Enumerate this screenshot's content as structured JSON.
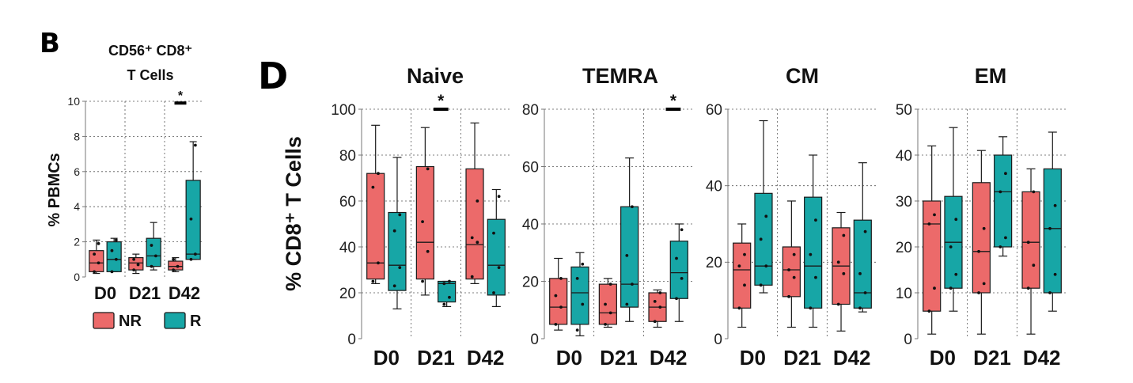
{
  "figure": {
    "panel_b_label": "B",
    "panel_d_label": "D",
    "panel_b_ylabel": "% PBMCs",
    "panel_d_ylabel": "% CD8⁺ T Cells",
    "legend": [
      {
        "label": "NR",
        "color": "#ec6a6a"
      },
      {
        "label": "R",
        "color": "#17a6a6"
      }
    ],
    "significance_marker": "*"
  },
  "colors": {
    "NR": "#ec6a6a",
    "R": "#17a6a6",
    "outline": "#1a1a1a",
    "grid": "#555555"
  },
  "chart_data": [
    {
      "id": "cd56",
      "type": "box",
      "title_lines": [
        "CD56⁺ CD8⁺",
        "T Cells"
      ],
      "ylabel": "% PBMCs",
      "categories": [
        "D0",
        "D21",
        "D42"
      ],
      "ylim": [
        0,
        10
      ],
      "yticks": [
        0,
        2,
        4,
        6,
        8,
        10
      ],
      "series": [
        {
          "name": "NR",
          "boxes": [
            {
              "min": 0.2,
              "q1": 0.3,
              "median": 0.8,
              "q3": 1.5,
              "max": 2.1,
              "points": [
                0.3,
                0.8,
                1.3,
                1.9
              ]
            },
            {
              "min": 0.2,
              "q1": 0.4,
              "median": 0.8,
              "q3": 1.1,
              "max": 1.3,
              "points": [
                0.4,
                0.7,
                1.0
              ]
            },
            {
              "min": 0.3,
              "q1": 0.4,
              "median": 0.6,
              "q3": 0.9,
              "max": 1.1,
              "points": [
                0.4,
                0.6,
                1.0
              ]
            }
          ]
        },
        {
          "name": "R",
          "boxes": [
            {
              "min": 0.3,
              "q1": 0.3,
              "median": 1.0,
              "q3": 2.0,
              "max": 2.2,
              "points": [
                0.3,
                1.0,
                1.5,
                2.1
              ]
            },
            {
              "min": 0.4,
              "q1": 0.6,
              "median": 1.2,
              "q3": 2.2,
              "max": 3.1,
              "points": [
                0.6,
                1.2,
                1.8
              ]
            },
            {
              "min": 1.0,
              "q1": 1.0,
              "median": 1.3,
              "q3": 5.5,
              "max": 7.7,
              "points": [
                1.0,
                1.3,
                3.3,
                7.5
              ]
            }
          ]
        }
      ],
      "significance": [
        {
          "x_from": 2.75,
          "x_to": 3.05,
          "y": 9.9,
          "label": "*"
        }
      ]
    },
    {
      "id": "naive",
      "type": "box",
      "title": "Naive",
      "ylabel": "% CD8⁺ T Cells",
      "categories": [
        "D0",
        "D21",
        "D42"
      ],
      "ylim": [
        0,
        100
      ],
      "yticks": [
        0,
        20,
        40,
        60,
        80,
        100
      ],
      "series": [
        {
          "name": "NR",
          "boxes": [
            {
              "min": 24,
              "q1": 26,
              "median": 33,
              "q3": 72,
              "max": 93,
              "points": [
                25,
                33,
                66,
                72
              ]
            },
            {
              "min": 19,
              "q1": 26,
              "median": 42,
              "q3": 75,
              "max": 92,
              "points": [
                25,
                38,
                51,
                74
              ]
            },
            {
              "min": 24,
              "q1": 26,
              "median": 41,
              "q3": 74,
              "max": 94,
              "points": [
                27,
                42,
                44,
                60
              ]
            }
          ]
        },
        {
          "name": "R",
          "boxes": [
            {
              "min": 13,
              "q1": 21,
              "median": 32,
              "q3": 55,
              "max": 79,
              "points": [
                23,
                31,
                47,
                54
              ]
            },
            {
              "min": 14,
              "q1": 16,
              "median": 24,
              "q3": 25,
              "max": 25,
              "points": [
                15,
                18,
                24,
                25
              ]
            },
            {
              "min": 14,
              "q1": 19,
              "median": 32,
              "q3": 52,
              "max": 65,
              "points": [
                20,
                31,
                46,
                62
              ]
            }
          ]
        }
      ],
      "significance": [
        {
          "x_from": 1.95,
          "x_to": 2.25,
          "y": 100,
          "label": "*"
        }
      ]
    },
    {
      "id": "temra",
      "type": "box",
      "title": "TEMRA",
      "ylabel": "",
      "categories": [
        "D0",
        "D21",
        "D42"
      ],
      "ylim": [
        0,
        80
      ],
      "yticks": [
        0,
        20,
        40,
        60,
        80
      ],
      "series": [
        {
          "name": "NR",
          "boxes": [
            {
              "min": 3,
              "q1": 5,
              "median": 11,
              "q3": 21,
              "max": 28,
              "points": [
                5,
                11,
                15,
                21
              ]
            },
            {
              "min": 4,
              "q1": 5,
              "median": 9,
              "q3": 19,
              "max": 21,
              "points": [
                5,
                9,
                12,
                19
              ]
            },
            {
              "min": 4,
              "q1": 6,
              "median": 11,
              "q3": 16,
              "max": 17,
              "points": [
                6,
                11,
                13,
                16
              ]
            }
          ]
        },
        {
          "name": "R",
          "boxes": [
            {
              "min": 1,
              "q1": 5,
              "median": 16,
              "q3": 25,
              "max": 30,
              "points": [
                3,
                12,
                21,
                26
              ]
            },
            {
              "min": 6,
              "q1": 11,
              "median": 19,
              "q3": 46,
              "max": 63,
              "points": [
                12,
                19,
                29,
                46
              ]
            },
            {
              "min": 6,
              "q1": 14,
              "median": 23,
              "q3": 34,
              "max": 40,
              "points": [
                14,
                21,
                28,
                38
              ]
            }
          ]
        }
      ],
      "significance": [
        {
          "x_from": 2.95,
          "x_to": 3.25,
          "y": 80,
          "label": "*"
        }
      ]
    },
    {
      "id": "cm",
      "type": "box",
      "title": "CM",
      "ylabel": "",
      "categories": [
        "D0",
        "D21",
        "D42"
      ],
      "ylim": [
        0,
        60
      ],
      "yticks": [
        0,
        20,
        40,
        60
      ],
      "series": [
        {
          "name": "NR",
          "boxes": [
            {
              "min": 3,
              "q1": 8,
              "median": 18,
              "q3": 25,
              "max": 30,
              "points": [
                8,
                14,
                19,
                22
              ]
            },
            {
              "min": 3,
              "q1": 11,
              "median": 18,
              "q3": 24,
              "max": 36,
              "points": [
                11,
                16,
                18,
                22
              ]
            },
            {
              "min": 2,
              "q1": 9,
              "median": 19,
              "q3": 29,
              "max": 33,
              "points": [
                9,
                17,
                20,
                27
              ]
            }
          ]
        },
        {
          "name": "R",
          "boxes": [
            {
              "min": 12,
              "q1": 14,
              "median": 19,
              "q3": 38,
              "max": 57,
              "points": [
                14,
                19,
                26,
                32
              ]
            },
            {
              "min": 3,
              "q1": 8,
              "median": 19,
              "q3": 37,
              "max": 48,
              "points": [
                8,
                16,
                22,
                31
              ]
            },
            {
              "min": 7,
              "q1": 8,
              "median": 12,
              "q3": 31,
              "max": 46,
              "points": [
                8,
                12,
                17,
                28
              ]
            }
          ]
        }
      ],
      "significance": []
    },
    {
      "id": "em",
      "type": "box",
      "title": "EM",
      "ylabel": "",
      "categories": [
        "D0",
        "D21",
        "D42"
      ],
      "ylim": [
        0,
        50
      ],
      "yticks": [
        0,
        10,
        20,
        30,
        40,
        50
      ],
      "series": [
        {
          "name": "NR",
          "boxes": [
            {
              "min": 1,
              "q1": 6,
              "median": 25,
              "q3": 30,
              "max": 42,
              "points": [
                6,
                11,
                25,
                27
              ]
            },
            {
              "min": 1,
              "q1": 10,
              "median": 19,
              "q3": 34,
              "max": 41,
              "points": [
                10,
                12,
                19,
                24
              ]
            },
            {
              "min": 1,
              "q1": 11,
              "median": 21,
              "q3": 32,
              "max": 37,
              "points": [
                11,
                16,
                21,
                32
              ]
            }
          ]
        },
        {
          "name": "R",
          "boxes": [
            {
              "min": 6,
              "q1": 11,
              "median": 21,
              "q3": 31,
              "max": 46,
              "points": [
                11,
                14,
                20,
                26
              ]
            },
            {
              "min": 18,
              "q1": 20,
              "median": 32,
              "q3": 40,
              "max": 44,
              "points": [
                20,
                22,
                32,
                36
              ]
            },
            {
              "min": 6,
              "q1": 10,
              "median": 24,
              "q3": 37,
              "max": 45,
              "points": [
                10,
                14,
                24,
                29
              ]
            }
          ]
        }
      ],
      "significance": []
    }
  ]
}
